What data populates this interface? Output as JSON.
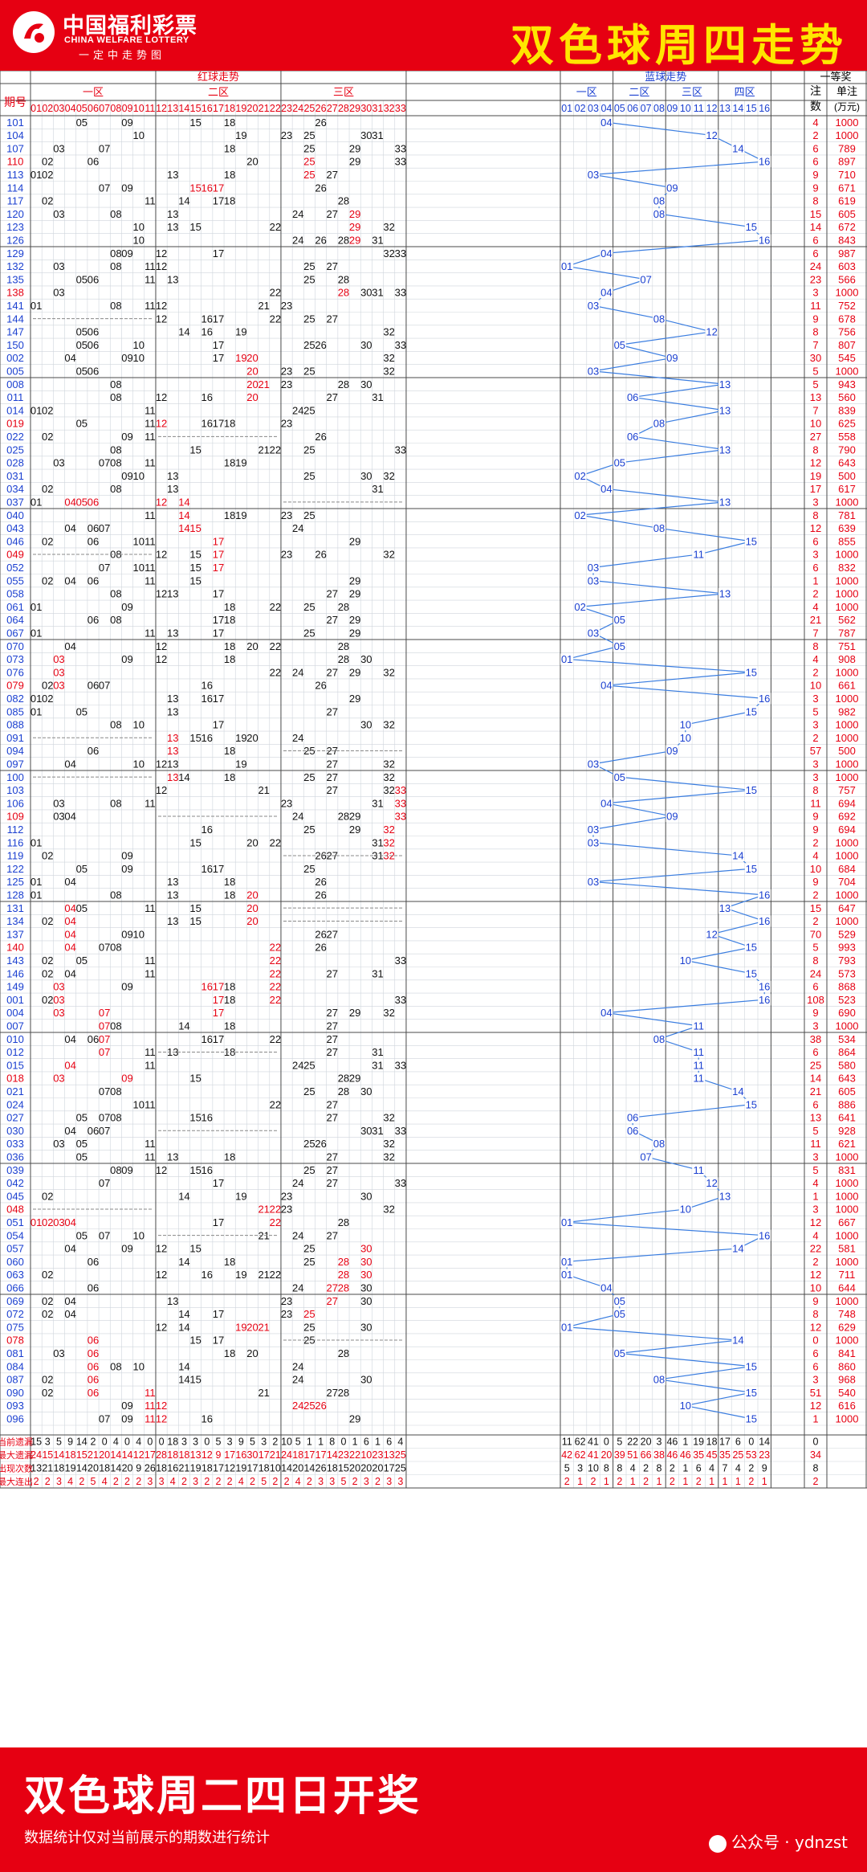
{
  "header": {
    "logo_cn": "中国福利彩票",
    "logo_en": "CHINA WELFARE LOTTERY",
    "logo_slogan": "一定中走势图",
    "title": "双色球周四走势"
  },
  "footer": {
    "title": "双色球周二四日开奖",
    "note": "数据统计仅对当前展示的期数进行统计",
    "credit": "公众号 · ydnzst"
  },
  "chart_data": {
    "type": "table",
    "column_headers": {
      "issue": "期号",
      "red_group": "红球走势",
      "blue_group": "蓝球走势",
      "prize_group": "一等奖",
      "count": "注数",
      "bonus": "单注(万元)",
      "red_zones": [
        "一区",
        "二区",
        "三区"
      ],
      "blue_zones": [
        "一区",
        "二区",
        "三区",
        "四区"
      ]
    },
    "red_numbers": [
      "01",
      "02",
      "03",
      "04",
      "05",
      "06",
      "07",
      "08",
      "09",
      "10",
      "11",
      "12",
      "13",
      "14",
      "15",
      "16",
      "17",
      "18",
      "19",
      "20",
      "21",
      "22",
      "23",
      "24",
      "25",
      "26",
      "27",
      "28",
      "29",
      "30",
      "31",
      "32",
      "33"
    ],
    "blue_numbers": [
      "01",
      "02",
      "03",
      "04",
      "05",
      "06",
      "07",
      "08",
      "09",
      "10",
      "11",
      "12",
      "13",
      "14",
      "15",
      "16"
    ],
    "colors": {
      "red": "#e60012",
      "blue_line": "#3a7de0",
      "blue_text": "#1a3fd0",
      "grid": "#cfd5dc",
      "border": "#4a4a4a"
    },
    "draws": [
      [
        "101",
        "05,09,15,18,26",
        "04",
        "4",
        "1000"
      ],
      [
        "104",
        "10,19,23,25,30,31",
        "12",
        "2",
        "1000"
      ],
      [
        "107",
        "03,07,18,25,29,33",
        "14",
        "6",
        "789"
      ],
      [
        "110",
        "02,06,20,25,29,33",
        "16",
        "6",
        "897"
      ],
      [
        "113",
        "01,02,13,18,25,27",
        "03",
        "9",
        "710"
      ],
      [
        "114",
        "07,09,15,16,17,26",
        "09",
        "9",
        "671"
      ],
      [
        "117",
        "02,11,14,17,18,28",
        "08",
        "8",
        "619"
      ],
      [
        "120",
        "03,08,13,24,27,29",
        "08",
        "15",
        "605"
      ],
      [
        "123",
        "10,13,15,22,29,32",
        "15",
        "14",
        "672"
      ],
      [
        "126",
        "10,24,26,28,29,31",
        "16",
        "6",
        "843"
      ],
      [
        "129",
        "08,09,12,17,32,33",
        "04",
        "6",
        "987"
      ],
      [
        "132",
        "03,08,11,12,25,27",
        "01",
        "24",
        "603"
      ],
      [
        "135",
        "05,06,11,13,25,28",
        "07",
        "23",
        "566"
      ],
      [
        "138",
        "03,22,28,30,31,33",
        "04",
        "3",
        "1000"
      ],
      [
        "141",
        "01,08,11,12,21,23",
        "03",
        "11",
        "752"
      ],
      [
        "144",
        "12,16,17,22,25,27",
        "08",
        "9",
        "678"
      ],
      [
        "147",
        "05,06,14,16,19,32",
        "12",
        "8",
        "756"
      ],
      [
        "150",
        "05,06,10,17,25,26,30,33",
        "05",
        "7",
        "807"
      ],
      [
        "002",
        "04,09,10,17,19,20,32",
        "09",
        "30",
        "545"
      ],
      [
        "005",
        "05,06,20,23,25,32",
        "03",
        "5",
        "1000"
      ],
      [
        "008",
        "08,20,21,23,28,30",
        "13",
        "5",
        "943"
      ],
      [
        "011",
        "08,12,16,20,27,31",
        "06",
        "13",
        "560"
      ],
      [
        "014",
        "01,02,11,24,25",
        "13",
        "7",
        "839"
      ],
      [
        "019",
        "05,11,12,16,17,18,23",
        "08",
        "10",
        "625"
      ],
      [
        "022",
        "02,09,11,26",
        "06",
        "27",
        "558"
      ],
      [
        "025",
        "08,15,21,22,25,33",
        "13",
        "8",
        "790"
      ],
      [
        "028",
        "03,07,08,11,18,19",
        "05",
        "12",
        "643"
      ],
      [
        "031",
        "09,10,13,25,30,32",
        "02",
        "19",
        "500"
      ],
      [
        "034",
        "02,08,13,31",
        "04",
        "17",
        "617"
      ],
      [
        "037",
        "01,04,05,06,12,14",
        "13",
        "3",
        "1000"
      ],
      [
        "040",
        "11,14,18,19,23,25",
        "02",
        "8",
        "781"
      ],
      [
        "043",
        "04,06,07,14,15,24",
        "08",
        "12",
        "639"
      ],
      [
        "046",
        "02,06,10,11,17,29",
        "15",
        "6",
        "855"
      ],
      [
        "049",
        "08,12,15,17,23,26,32",
        "11",
        "3",
        "1000"
      ],
      [
        "052",
        "07,10,11,15,17",
        "03",
        "6",
        "832"
      ],
      [
        "055",
        "02,04,06,11,15,29",
        "03",
        "1",
        "1000"
      ],
      [
        "058",
        "08,12,13,17,27,29",
        "13",
        "2",
        "1000"
      ],
      [
        "061",
        "01,09,18,22,25,28",
        "02",
        "4",
        "1000"
      ],
      [
        "064",
        "06,08,17,18,27,29",
        "05",
        "21",
        "562"
      ],
      [
        "067",
        "01,11,13,17,25,29",
        "03",
        "7",
        "787"
      ],
      [
        "070",
        "04,12,18,20,22,28",
        "05",
        "8",
        "751"
      ],
      [
        "073",
        "03,09,12,18,28,30",
        "01",
        "4",
        "908"
      ],
      [
        "076",
        "03,22,24,27,29,32",
        "15",
        "2",
        "1000"
      ],
      [
        "079",
        "02,03,06,07,16,26",
        "04",
        "10",
        "661"
      ],
      [
        "082",
        "01,02,13,16,17,29",
        "16",
        "3",
        "1000"
      ],
      [
        "085",
        "01,05,13,27",
        "15",
        "5",
        "982"
      ],
      [
        "088",
        "08,10,17,30,32",
        "10",
        "3",
        "1000"
      ],
      [
        "091",
        "13,15,16,19,20,24",
        "10",
        "2",
        "1000"
      ],
      [
        "094",
        "06,13,18,25,27",
        "09",
        "57",
        "500"
      ],
      [
        "097",
        "04,10,12,13,19,27,32",
        "03",
        "3",
        "1000"
      ],
      [
        "100",
        "13,14,18,25,27,32",
        "05",
        "3",
        "1000"
      ],
      [
        "103",
        "12,21,27,32,33",
        "15",
        "8",
        "757"
      ],
      [
        "106",
        "03,08,11,23,31,33",
        "04",
        "11",
        "694"
      ],
      [
        "109",
        "03,04,24,28,29,33",
        "09",
        "9",
        "692"
      ],
      [
        "112",
        "16,25,29,32",
        "03",
        "9",
        "694"
      ],
      [
        "116",
        "01,15,20,22,31,32",
        "03",
        "2",
        "1000"
      ],
      [
        "119",
        "02,09,26,27,31,32",
        "14",
        "4",
        "1000"
      ],
      [
        "122",
        "05,09,16,17,25",
        "15",
        "10",
        "684"
      ],
      [
        "125",
        "01,04,13,18,26",
        "03",
        "9",
        "704"
      ],
      [
        "128",
        "01,08,13,18,20,26",
        "16",
        "2",
        "1000"
      ],
      [
        "131",
        "04,05,11,15,20",
        "13",
        "15",
        "647"
      ],
      [
        "134",
        "02,04,13,15,20",
        "16",
        "2",
        "1000"
      ],
      [
        "137",
        "04,09,10,26,27",
        "12",
        "70",
        "529"
      ],
      [
        "140",
        "04,07,08,22,26",
        "15",
        "5",
        "993"
      ],
      [
        "143",
        "02,05,11,22,33",
        "10",
        "8",
        "793"
      ],
      [
        "146",
        "02,04,11,22,27,31",
        "15",
        "24",
        "573"
      ],
      [
        "149",
        "03,09,16,17,18,22",
        "16",
        "6",
        "868"
      ],
      [
        "001",
        "02,03,17,18,22,33",
        "16",
        "108",
        "523"
      ],
      [
        "004",
        "03,07,17,27,29,32",
        "04",
        "9",
        "690"
      ],
      [
        "007",
        "07,08,14,18,27",
        "11",
        "3",
        "1000"
      ],
      [
        "010",
        "04,06,07,16,17,22,27",
        "08",
        "38",
        "534"
      ],
      [
        "012",
        "07,11,13,18,27,31",
        "11",
        "6",
        "864"
      ],
      [
        "015",
        "04,11,24,25,31,33",
        "11",
        "25",
        "580"
      ],
      [
        "018",
        "03,09,15,28,29",
        "11",
        "14",
        "643"
      ],
      [
        "021",
        "07,08,25,28,30",
        "14",
        "21",
        "605"
      ],
      [
        "024",
        "10,11,22,27",
        "15",
        "6",
        "886"
      ],
      [
        "027",
        "05,07,08,15,16,27,32",
        "06",
        "13",
        "641"
      ],
      [
        "030",
        "04,06,07,30,31,33",
        "06",
        "5",
        "928"
      ],
      [
        "033",
        "03,05,11,25,26,32",
        "08",
        "11",
        "621"
      ],
      [
        "036",
        "05,11,13,18,27,32",
        "07",
        "3",
        "1000"
      ],
      [
        "039",
        "08,09,12,15,16,25,27",
        "11",
        "5",
        "831"
      ],
      [
        "042",
        "07,17,24,27,33",
        "12",
        "4",
        "1000"
      ],
      [
        "045",
        "02,14,19,23,30",
        "13",
        "1",
        "1000"
      ],
      [
        "048",
        "21,22,23,32",
        "10",
        "3",
        "1000"
      ],
      [
        "051",
        "01,02,03,04,17,22,28",
        "01",
        "12",
        "667"
      ],
      [
        "054",
        "05,07,10,21,24,27",
        "16",
        "4",
        "1000"
      ],
      [
        "057",
        "04,09,12,15,25,30",
        "14",
        "22",
        "581"
      ],
      [
        "060",
        "06,14,18,25,28,30",
        "01",
        "2",
        "1000"
      ],
      [
        "063",
        "02,12,16,19,21,22,28,30",
        "01",
        "12",
        "711"
      ],
      [
        "066",
        "06,24,27,28,30",
        "04",
        "10",
        "644"
      ],
      [
        "069",
        "02,04,13,23,27,30",
        "05",
        "9",
        "1000"
      ],
      [
        "072",
        "02,04,14,17,23,25",
        "05",
        "8",
        "748"
      ],
      [
        "075",
        "12,14,19,20,21,25,30",
        "01",
        "12",
        "629"
      ],
      [
        "078",
        "06,15,17,25",
        "14",
        "0",
        "1000"
      ],
      [
        "081",
        "03,06,18,20,28",
        "05",
        "6",
        "841"
      ],
      [
        "084",
        "06,08,10,14,24",
        "15",
        "6",
        "860"
      ],
      [
        "087",
        "02,06,14,15,24,30",
        "08",
        "3",
        "968"
      ],
      [
        "090",
        "02,06,11,21,27,28",
        "15",
        "51",
        "540"
      ],
      [
        "093",
        "09,11,12,24,25,26",
        "10",
        "12",
        "616"
      ],
      [
        "096",
        "07,09,11,12,16,29",
        "15",
        "1",
        "1000"
      ]
    ],
    "red_highlight": {
      "110": [
        "25"
      ],
      "113": [
        "25"
      ],
      "114": [
        "15",
        "16",
        "17"
      ],
      "120": [
        "29"
      ],
      "123": [
        "29"
      ],
      "126": [
        "29"
      ],
      "138": [
        "28"
      ],
      "002": [
        "19",
        "20"
      ],
      "005": [
        "20"
      ],
      "008": [
        "20",
        "21"
      ],
      "011": [
        "20"
      ],
      "019": [
        "12"
      ],
      "037": [
        "04",
        "05",
        "06",
        "12",
        "14"
      ],
      "040": [
        "14"
      ],
      "043": [
        "14",
        "15"
      ],
      "046": [
        "17"
      ],
      "049": [
        "17"
      ],
      "052": [
        "17"
      ],
      "073": [
        "03"
      ],
      "076": [
        "03"
      ],
      "079": [
        "03"
      ],
      "091": [
        "13"
      ],
      "094": [
        "13"
      ],
      "100": [
        "13"
      ],
      "103": [
        "33"
      ],
      "106": [
        "33"
      ],
      "109": [
        "33"
      ],
      "112": [
        "32"
      ],
      "116": [
        "32"
      ],
      "119": [
        "32"
      ],
      "128": [
        "20"
      ],
      "131": [
        "04",
        "20"
      ],
      "134": [
        "04",
        "20"
      ],
      "137": [
        "04"
      ],
      "140": [
        "04",
        "22"
      ],
      "143": [
        "22"
      ],
      "146": [
        "22"
      ],
      "149": [
        "03",
        "16",
        "17",
        "22"
      ],
      "001": [
        "03",
        "17",
        "22"
      ],
      "004": [
        "03",
        "07",
        "17"
      ],
      "007": [
        "07"
      ],
      "010": [
        "07"
      ],
      "012": [
        "07"
      ],
      "015": [
        "04"
      ],
      "018": [
        "03",
        "09"
      ],
      "048": [
        "21",
        "22"
      ],
      "051": [
        "01",
        "02",
        "03",
        "04",
        "22"
      ],
      "057": [
        "30"
      ],
      "060": [
        "28",
        "30"
      ],
      "063": [
        "28",
        "30"
      ],
      "066": [
        "27",
        "28"
      ],
      "069": [
        "27"
      ],
      "072": [
        "25"
      ],
      "075": [
        "19",
        "20",
        "21"
      ],
      "078": [
        "06"
      ],
      "081": [
        "06"
      ],
      "084": [
        "06"
      ],
      "087": [
        "06"
      ],
      "090": [
        "06",
        "11"
      ],
      "093": [
        "11",
        "12",
        "24",
        "25",
        "26"
      ],
      "096": [
        "11",
        "12"
      ]
    },
    "red_dashes": {
      "144": [
        1,
        11
      ],
      "022": [
        12,
        22
      ],
      "037": [
        23,
        33
      ],
      "049": [
        1,
        11
      ],
      "091": [
        1,
        11
      ],
      "094": [
        23,
        33
      ],
      "100": [
        1,
        11
      ],
      "109": [
        12,
        22
      ],
      "119": [
        23,
        33
      ],
      "134": [
        23,
        33
      ],
      "012": [
        12,
        22
      ],
      "030": [
        12,
        22
      ],
      "048": [
        1,
        11
      ],
      "054": [
        12,
        22
      ],
      "078": [
        23,
        33
      ],
      "131": [
        23,
        33
      ]
    },
    "red_issue_rows": [
      "110",
      "138",
      "019",
      "049",
      "079",
      "109",
      "140",
      "018",
      "048",
      "078"
    ],
    "stats": [
      {
        "label": "当前遗漏",
        "red": [
          "15",
          "3",
          "5",
          "9",
          "14",
          "2",
          "0",
          "4",
          "0",
          "4",
          "0",
          "0",
          "18",
          "3",
          "3",
          "0",
          "5",
          "3",
          "9",
          "5",
          "3",
          "2",
          "10",
          "5",
          "1",
          "1",
          "8",
          "0",
          "1",
          "6",
          "1",
          "6",
          "4"
        ],
        "blue": [
          "11",
          "62",
          "41",
          "0",
          "5",
          "22",
          "20",
          "3",
          "46",
          "1",
          "19",
          "18",
          "17",
          "6",
          "0",
          "14"
        ],
        "other": [
          "0",
          ""
        ]
      },
      {
        "label": "最大遗漏",
        "red": [
          "24",
          "15",
          "14",
          "18",
          "15",
          "21",
          "20",
          "14",
          "14",
          "12",
          "17",
          "28",
          "18",
          "18",
          "13",
          "12",
          "9",
          "17",
          "16",
          "30",
          "17",
          "21",
          "24",
          "18",
          "17",
          "17",
          "14",
          "23",
          "22",
          "10",
          "23",
          "13",
          "25"
        ],
        "blue": [
          "42",
          "62",
          "41",
          "20",
          "39",
          "51",
          "66",
          "38",
          "46",
          "46",
          "35",
          "45",
          "35",
          "25",
          "53",
          "23"
        ],
        "other": [
          "34",
          ""
        ]
      },
      {
        "label": "出现次数",
        "red": [
          "13",
          "21",
          "18",
          "19",
          "14",
          "20",
          "18",
          "14",
          "20",
          "9",
          "26",
          "18",
          "16",
          "21",
          "19",
          "18",
          "17",
          "12",
          "19",
          "17",
          "18",
          "10",
          "14",
          "20",
          "14",
          "26",
          "18",
          "15",
          "20",
          "20",
          "20",
          "17",
          "25"
        ],
        "blue": [
          "5",
          "3",
          "10",
          "8",
          "8",
          "4",
          "2",
          "8",
          "2",
          "1",
          "6",
          "4",
          "7",
          "4",
          "2",
          "9"
        ],
        "other": [
          "8",
          ""
        ]
      },
      {
        "label": "最大连出",
        "red": [
          "2",
          "2",
          "3",
          "4",
          "2",
          "5",
          "4",
          "2",
          "2",
          "2",
          "3",
          "3",
          "4",
          "2",
          "3",
          "2",
          "2",
          "2",
          "4",
          "2",
          "5",
          "2",
          "2",
          "4",
          "2",
          "3",
          "3",
          "5",
          "2",
          "3",
          "2",
          "3",
          "3"
        ],
        "blue": [
          "2",
          "1",
          "2",
          "1",
          "2",
          "1",
          "2",
          "1",
          "2",
          "1",
          "2",
          "1",
          "1",
          "1",
          "2",
          "1"
        ],
        "other": [
          "2",
          ""
        ]
      }
    ]
  }
}
